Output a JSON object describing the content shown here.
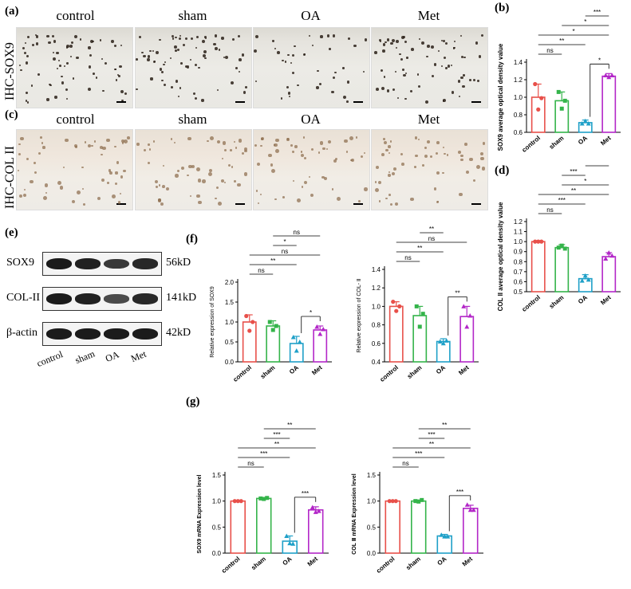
{
  "panels": {
    "a": "(a)",
    "b": "(b)",
    "c": "(c)",
    "d": "(d)",
    "e": "(e)",
    "f": "(f)",
    "g": "(g)"
  },
  "ihc": {
    "sox9_row_label": "IHC-SOX9",
    "col_row_label": "IHC-COL II",
    "groups": [
      "control",
      "sham",
      "OA",
      "Met"
    ]
  },
  "western": {
    "markers": [
      {
        "name": "SOX9",
        "size": "56kD",
        "intensity": [
          1.0,
          0.95,
          0.75,
          0.9
        ]
      },
      {
        "name": "COL-II",
        "size": "141kD",
        "intensity": [
          1.0,
          0.95,
          0.6,
          0.9
        ]
      },
      {
        "name": "β-actin",
        "size": "42kD",
        "intensity": [
          1.0,
          1.0,
          1.0,
          1.0
        ]
      }
    ],
    "lanes": [
      "control",
      "sham",
      "OA",
      "Met"
    ]
  },
  "colors": {
    "control": "#e8504a",
    "sham": "#34b44a",
    "OA": "#1fa0c8",
    "Met": "#b327c8"
  },
  "chart_data": [
    {
      "id": "b",
      "type": "bar",
      "categories": [
        "control",
        "sham",
        "OA",
        "Met"
      ],
      "values": [
        1.0,
        0.96,
        0.71,
        1.24
      ],
      "errors": [
        0.15,
        0.1,
        0.03,
        0.03
      ],
      "points": [
        [
          1.15,
          0.86,
          0.99
        ],
        [
          1.06,
          0.87,
          0.96
        ],
        [
          0.7,
          0.73,
          0.7
        ],
        [
          1.25,
          1.23,
          1.25
        ]
      ],
      "ylabel": "SOX9 average optical density value",
      "ylim": [
        0.6,
        1.4
      ],
      "yticks": [
        "0.6",
        "0.8",
        "1.0",
        "1.2",
        "1.4"
      ],
      "ytick_values": [
        0.6,
        0.8,
        1.0,
        1.2,
        1.4
      ],
      "sig": [
        {
          "a": 0,
          "b": 1,
          "label": "ns"
        },
        {
          "a": 0,
          "b": 2,
          "label": "**"
        },
        {
          "a": 0,
          "b": 3,
          "label": "*"
        },
        {
          "a": 1,
          "b": 3,
          "label": "*"
        },
        {
          "a": 2,
          "b": 3,
          "label": "***"
        },
        {
          "a": 2,
          "b": 3,
          "label": "*",
          "low": true
        }
      ]
    },
    {
      "id": "d",
      "type": "bar",
      "categories": [
        "control",
        "sham",
        "OA",
        "Met"
      ],
      "values": [
        1.0,
        0.94,
        0.63,
        0.85
      ],
      "errors": [
        0.01,
        0.03,
        0.04,
        0.04
      ],
      "points": [
        [
          1.0,
          1.0,
          1.0
        ],
        [
          0.94,
          0.96,
          0.93
        ],
        [
          0.61,
          0.66,
          0.62
        ],
        [
          0.83,
          0.89,
          0.86
        ]
      ],
      "ylabel": "COL II average optical density value",
      "ylim": [
        0.5,
        1.2
      ],
      "yticks": [
        "0.5",
        "0.6",
        "0.7",
        "0.8",
        "0.9",
        "1.0",
        "1.1",
        "1.2"
      ],
      "ytick_values": [
        0.5,
        0.6,
        0.7,
        0.8,
        0.9,
        1.0,
        1.1,
        1.2
      ],
      "sig": [
        {
          "a": 0,
          "b": 1,
          "label": "ns"
        },
        {
          "a": 0,
          "b": 2,
          "label": "***"
        },
        {
          "a": 0,
          "b": 3,
          "label": "**"
        },
        {
          "a": 1,
          "b": 3,
          "label": "*"
        },
        {
          "a": 1,
          "b": 2,
          "label": "***"
        },
        {
          "a": 2,
          "b": 3,
          "label": "***"
        }
      ]
    },
    {
      "id": "f1",
      "type": "bar",
      "categories": [
        "control",
        "sham",
        "OA",
        "Met"
      ],
      "values": [
        1.0,
        0.9,
        0.46,
        0.8
      ],
      "errors": [
        0.18,
        0.13,
        0.18,
        0.1
      ],
      "points": [
        [
          1.15,
          0.78,
          1.0
        ],
        [
          1.0,
          0.8,
          0.9
        ],
        [
          0.62,
          0.28,
          0.5
        ],
        [
          0.88,
          0.7,
          0.82
        ]
      ],
      "ylabel": "Relative expression of SOX9",
      "ylim": [
        0,
        2.0
      ],
      "yticks": [
        "0.0",
        "0.5",
        "1.0",
        "1.5",
        "2.0"
      ],
      "ytick_values": [
        0,
        0.5,
        1.0,
        1.5,
        2.0
      ],
      "sig": [
        {
          "a": 0,
          "b": 1,
          "label": "ns"
        },
        {
          "a": 0,
          "b": 2,
          "label": "**"
        },
        {
          "a": 0,
          "b": 3,
          "label": "ns"
        },
        {
          "a": 1,
          "b": 2,
          "label": "*"
        },
        {
          "a": 1,
          "b": 3,
          "label": "ns"
        },
        {
          "a": 2,
          "b": 3,
          "label": "*",
          "low": true
        }
      ]
    },
    {
      "id": "f2",
      "type": "bar",
      "categories": [
        "control",
        "sham",
        "OA",
        "Met"
      ],
      "values": [
        1.0,
        0.9,
        0.62,
        0.89
      ],
      "errors": [
        0.05,
        0.1,
        0.03,
        0.11
      ],
      "points": [
        [
          1.05,
          0.95,
          1.0
        ],
        [
          1.0,
          0.78,
          0.92
        ],
        [
          0.62,
          0.6,
          0.63
        ],
        [
          1.0,
          0.78,
          0.9
        ]
      ],
      "ylabel": "Relative expression of COL- Ⅱ",
      "ylim": [
        0.4,
        1.4
      ],
      "yticks": [
        "0.4",
        "0.6",
        "0.8",
        "1.0",
        "1.2",
        "1.4"
      ],
      "ytick_values": [
        0.4,
        0.6,
        0.8,
        1.0,
        1.2,
        1.4
      ],
      "sig": [
        {
          "a": 0,
          "b": 1,
          "label": "ns"
        },
        {
          "a": 0,
          "b": 2,
          "label": "**"
        },
        {
          "a": 0,
          "b": 3,
          "label": "ns"
        },
        {
          "a": 1,
          "b": 2,
          "label": "**"
        },
        {
          "a": 1,
          "b": 3,
          "label": "ns"
        },
        {
          "a": 2,
          "b": 3,
          "label": "**",
          "low": true
        }
      ]
    },
    {
      "id": "g1",
      "type": "bar",
      "categories": [
        "control",
        "sham",
        "OA",
        "Met"
      ],
      "values": [
        1.0,
        1.05,
        0.23,
        0.83
      ],
      "errors": [
        0.01,
        0.02,
        0.1,
        0.06
      ],
      "points": [
        [
          1.0,
          1.0,
          1.0
        ],
        [
          1.05,
          1.04,
          1.06
        ],
        [
          0.33,
          0.19,
          0.18
        ],
        [
          0.88,
          0.79,
          0.81
        ]
      ],
      "ylabel": "SOX9  mRNA  Expression  level",
      "ylim": [
        0,
        1.5
      ],
      "yticks": [
        "0.0",
        "0.5",
        "1.0",
        "1.5"
      ],
      "ytick_values": [
        0,
        0.5,
        1.0,
        1.5
      ],
      "sig": [
        {
          "a": 0,
          "b": 1,
          "label": "ns"
        },
        {
          "a": 0,
          "b": 2,
          "label": "***"
        },
        {
          "a": 0,
          "b": 3,
          "label": "**"
        },
        {
          "a": 1,
          "b": 2,
          "label": "***"
        },
        {
          "a": 1,
          "b": 3,
          "label": "**"
        },
        {
          "a": 2,
          "b": 3,
          "label": "***",
          "low": true
        }
      ]
    },
    {
      "id": "g2",
      "type": "bar",
      "categories": [
        "control",
        "sham",
        "OA",
        "Met"
      ],
      "values": [
        1.0,
        1.0,
        0.33,
        0.86
      ],
      "errors": [
        0.01,
        0.02,
        0.03,
        0.06
      ],
      "points": [
        [
          1.0,
          1.0,
          1.0
        ],
        [
          1.0,
          0.99,
          1.02
        ],
        [
          0.35,
          0.32,
          0.32
        ],
        [
          0.93,
          0.83,
          0.83
        ]
      ],
      "ylabel": "COL Ⅱ  mRNA  Expression  level",
      "ylim": [
        0,
        1.5
      ],
      "yticks": [
        "0.0",
        "0.5",
        "1.0",
        "1.5"
      ],
      "ytick_values": [
        0,
        0.5,
        1.0,
        1.5
      ],
      "sig": [
        {
          "a": 0,
          "b": 1,
          "label": "ns"
        },
        {
          "a": 0,
          "b": 2,
          "label": "***"
        },
        {
          "a": 0,
          "b": 3,
          "label": "**"
        },
        {
          "a": 1,
          "b": 2,
          "label": "***"
        },
        {
          "a": 1,
          "b": 3,
          "label": "**"
        },
        {
          "a": 2,
          "b": 3,
          "label": "***",
          "low": true
        }
      ]
    }
  ]
}
